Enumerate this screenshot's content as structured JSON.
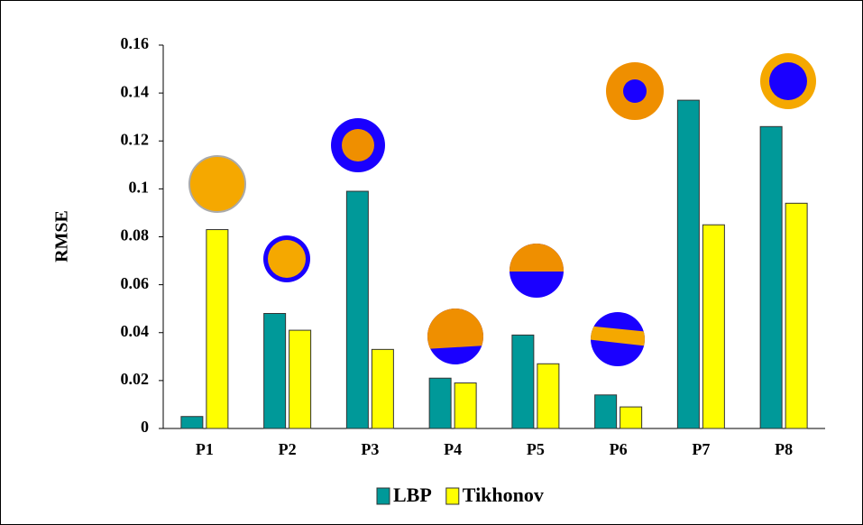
{
  "chart_data": {
    "type": "bar",
    "y_label": "RMSE",
    "categories": [
      "P1",
      "P2",
      "P3",
      "P4",
      "P5",
      "P6",
      "P7",
      "P8"
    ],
    "series": [
      {
        "name": "LBP",
        "color": "#009999",
        "values": [
          0.005,
          0.048,
          0.099,
          0.021,
          0.039,
          0.014,
          0.137,
          0.126
        ]
      },
      {
        "name": "Tikhonov",
        "color": "#ffff00",
        "values": [
          0.083,
          0.041,
          0.033,
          0.019,
          0.027,
          0.009,
          0.085,
          0.094
        ]
      }
    ],
    "ylim": [
      0,
      0.16
    ],
    "yticks": [
      0,
      0.02,
      0.04,
      0.06,
      0.08,
      0.1,
      0.12,
      0.14,
      0.16
    ],
    "grid": false,
    "legend": "bottom"
  }
}
